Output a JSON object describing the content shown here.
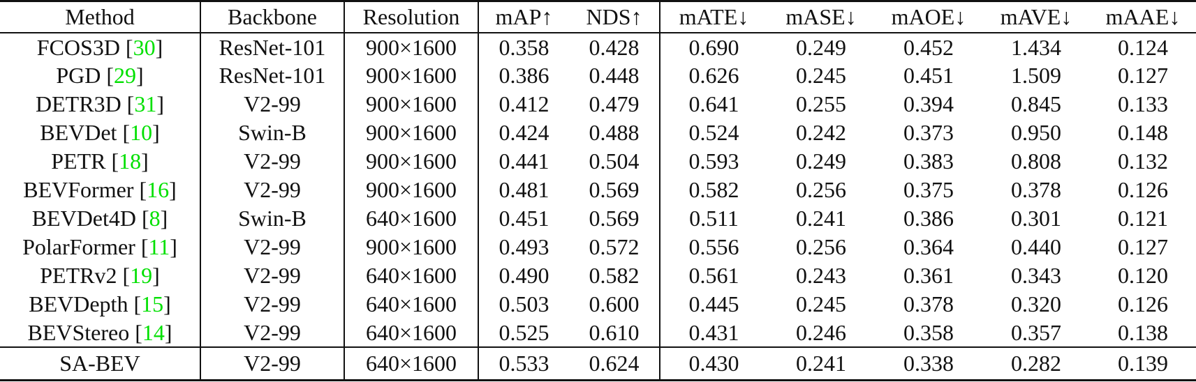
{
  "colors": {
    "citation_green": "#00e000",
    "text": "#111111",
    "rule": "#111111"
  },
  "brackets": {
    "open": "[",
    "close": "]"
  },
  "table": {
    "headers": [
      "Method",
      "Backbone",
      "Resolution",
      "mAP↑",
      "NDS↑",
      "mATE↓",
      "mASE↓",
      "mAOE↓",
      "mAVE↓",
      "mAAE↓"
    ],
    "metric_keys": [
      "mAP",
      "NDS",
      "mATE",
      "mASE",
      "mAOE",
      "mAVE",
      "mAAE"
    ],
    "rows": [
      {
        "method": "FCOS3D",
        "cite": "30",
        "backbone": "ResNet-101",
        "resolution": "900×1600",
        "metrics": [
          "0.358",
          "0.428",
          "0.690",
          "0.249",
          "0.452",
          "1.434",
          "0.124"
        ],
        "bold": [],
        "final": false
      },
      {
        "method": "PGD",
        "cite": "29",
        "backbone": "ResNet-101",
        "resolution": "900×1600",
        "metrics": [
          "0.386",
          "0.448",
          "0.626",
          "0.245",
          "0.451",
          "1.509",
          "0.127"
        ],
        "bold": [],
        "final": false
      },
      {
        "method": "DETR3D",
        "cite": "31",
        "backbone": "V2-99",
        "resolution": "900×1600",
        "metrics": [
          "0.412",
          "0.479",
          "0.641",
          "0.255",
          "0.394",
          "0.845",
          "0.133"
        ],
        "bold": [],
        "final": false
      },
      {
        "method": "BEVDet",
        "cite": "10",
        "backbone": "Swin-B",
        "resolution": "900×1600",
        "metrics": [
          "0.424",
          "0.488",
          "0.524",
          "0.242",
          "0.373",
          "0.950",
          "0.148"
        ],
        "bold": [],
        "final": false
      },
      {
        "method": "PETR",
        "cite": "18",
        "backbone": "V2-99",
        "resolution": "900×1600",
        "metrics": [
          "0.441",
          "0.504",
          "0.593",
          "0.249",
          "0.383",
          "0.808",
          "0.132"
        ],
        "bold": [],
        "final": false
      },
      {
        "method": "BEVFormer",
        "cite": "16",
        "backbone": "V2-99",
        "resolution": "900×1600",
        "metrics": [
          "0.481",
          "0.569",
          "0.582",
          "0.256",
          "0.375",
          "0.378",
          "0.126"
        ],
        "bold": [],
        "final": false
      },
      {
        "method": "BEVDet4D",
        "cite": "8",
        "backbone": "Swin-B",
        "resolution": "640×1600",
        "metrics": [
          "0.451",
          "0.569",
          "0.511",
          "0.241",
          "0.386",
          "0.301",
          "0.121"
        ],
        "bold": [],
        "final": false
      },
      {
        "method": "PolarFormer",
        "cite": "11",
        "backbone": "V2-99",
        "resolution": "900×1600",
        "metrics": [
          "0.493",
          "0.572",
          "0.556",
          "0.256",
          "0.364",
          "0.440",
          "0.127"
        ],
        "bold": [],
        "final": false
      },
      {
        "method": "PETRv2",
        "cite": "19",
        "backbone": "V2-99",
        "resolution": "640×1600",
        "metrics": [
          "0.490",
          "0.582",
          "0.561",
          "0.243",
          "0.361",
          "0.343",
          "0.120"
        ],
        "bold": [
          6
        ],
        "final": false
      },
      {
        "method": "BEVDepth",
        "cite": "15",
        "backbone": "V2-99",
        "resolution": "640×1600",
        "metrics": [
          "0.503",
          "0.600",
          "0.445",
          "0.245",
          "0.378",
          "0.320",
          "0.126"
        ],
        "bold": [],
        "final": false
      },
      {
        "method": "BEVStereo",
        "cite": "14",
        "backbone": "V2-99",
        "resolution": "640×1600",
        "metrics": [
          "0.525",
          "0.610",
          "0.431",
          "0.246",
          "0.358",
          "0.357",
          "0.138"
        ],
        "bold": [],
        "final": false
      },
      {
        "method": "SA-BEV",
        "cite": null,
        "backbone": "V2-99",
        "resolution": "640×1600",
        "metrics": [
          "0.533",
          "0.624",
          "0.430",
          "0.241",
          "0.338",
          "0.282",
          "0.139"
        ],
        "bold": [
          0,
          1,
          2,
          3,
          4,
          5
        ],
        "final": true
      }
    ]
  }
}
